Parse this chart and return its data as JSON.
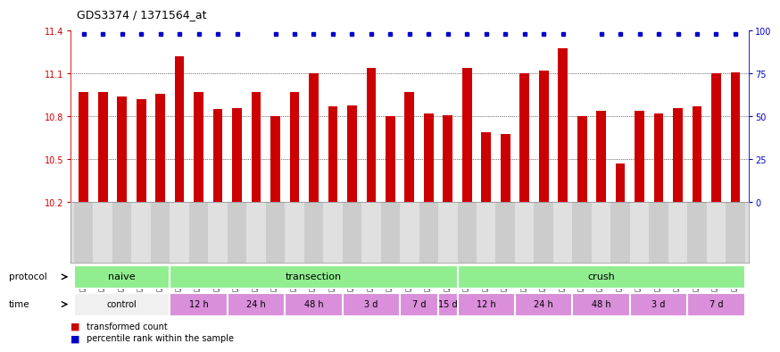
{
  "title": "GDS3374 / 1371564_at",
  "samples": [
    "GSM250998",
    "GSM250999",
    "GSM251000",
    "GSM251001",
    "GSM251002",
    "GSM251003",
    "GSM251004",
    "GSM251005",
    "GSM251006",
    "GSM251007",
    "GSM251008",
    "GSM251009",
    "GSM251010",
    "GSM251011",
    "GSM251012",
    "GSM251013",
    "GSM251014",
    "GSM251015",
    "GSM251016",
    "GSM251017",
    "GSM251018",
    "GSM251019",
    "GSM251020",
    "GSM251021",
    "GSM251022",
    "GSM251023",
    "GSM251024",
    "GSM251025",
    "GSM251026",
    "GSM251027",
    "GSM251028",
    "GSM251029",
    "GSM251030",
    "GSM251031",
    "GSM251032"
  ],
  "bar_values": [
    10.97,
    10.97,
    10.94,
    10.92,
    10.96,
    11.22,
    10.97,
    10.85,
    10.86,
    10.97,
    10.8,
    10.97,
    11.1,
    10.87,
    10.88,
    11.14,
    10.8,
    10.97,
    10.82,
    10.81,
    11.14,
    10.69,
    10.68,
    11.1,
    11.12,
    11.28,
    10.8,
    10.84,
    10.47,
    10.84,
    10.82,
    10.86,
    10.87,
    11.1,
    11.11
  ],
  "percentile_visible": [
    true,
    true,
    true,
    true,
    true,
    true,
    true,
    true,
    true,
    false,
    true,
    true,
    true,
    true,
    true,
    true,
    true,
    true,
    true,
    true,
    true,
    true,
    true,
    true,
    true,
    true,
    false,
    true,
    true,
    true,
    true,
    true,
    true,
    true,
    true
  ],
  "ylim_left": [
    10.2,
    11.4
  ],
  "ylim_right": [
    0,
    100
  ],
  "yticks_left": [
    10.2,
    10.5,
    10.8,
    11.1,
    11.4
  ],
  "yticks_right": [
    0,
    25,
    50,
    75,
    100
  ],
  "bar_color": "#cc0000",
  "percentile_color": "#0000cc",
  "proto_groups": [
    {
      "label": "naive",
      "start": 0,
      "end": 4
    },
    {
      "label": "transection",
      "start": 5,
      "end": 19
    },
    {
      "label": "crush",
      "start": 20,
      "end": 34
    }
  ],
  "time_groups": [
    {
      "label": "control",
      "start": 0,
      "end": 4,
      "color": "#f0f0f0"
    },
    {
      "label": "12 h",
      "start": 5,
      "end": 7,
      "color": "#da8fda"
    },
    {
      "label": "24 h",
      "start": 8,
      "end": 10,
      "color": "#da8fda"
    },
    {
      "label": "48 h",
      "start": 11,
      "end": 13,
      "color": "#da8fda"
    },
    {
      "label": "3 d",
      "start": 14,
      "end": 16,
      "color": "#da8fda"
    },
    {
      "label": "7 d",
      "start": 17,
      "end": 18,
      "color": "#da8fda"
    },
    {
      "label": "15 d",
      "start": 19,
      "end": 19,
      "color": "#da8fda"
    },
    {
      "label": "12 h",
      "start": 20,
      "end": 22,
      "color": "#da8fda"
    },
    {
      "label": "24 h",
      "start": 23,
      "end": 25,
      "color": "#da8fda"
    },
    {
      "label": "48 h",
      "start": 26,
      "end": 28,
      "color": "#da8fda"
    },
    {
      "label": "3 d",
      "start": 29,
      "end": 31,
      "color": "#da8fda"
    },
    {
      "label": "7 d",
      "start": 32,
      "end": 34,
      "color": "#da8fda"
    }
  ],
  "background_color": "#ffffff",
  "tick_color_left": "#cc0000",
  "tick_color_right": "#0000cc",
  "proto_color": "#90ee90",
  "bar_width": 0.5
}
